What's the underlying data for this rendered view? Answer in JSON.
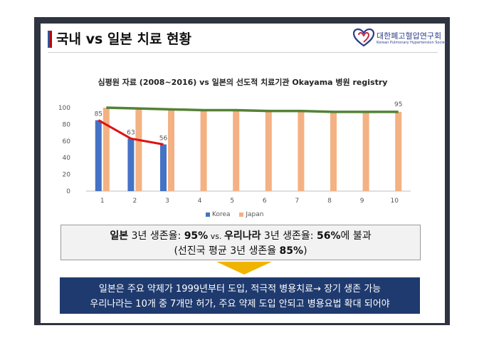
{
  "header": {
    "title": "국내 vs 일본 치료 현황",
    "logo_name_ko": "대한폐고혈압연구회",
    "logo_name_en": "Korean Pulmonary Hypertension Society"
  },
  "chart_data": {
    "type": "bar",
    "title": "심평원 자료 (2008~2016) vs 일본의 선도적 치료기관 Okayama 병원 registry",
    "categories": [
      "1",
      "2",
      "3",
      "4",
      "5",
      "6",
      "7",
      "8",
      "9",
      "10"
    ],
    "ylim": [
      0,
      100
    ],
    "yticks": [
      "0",
      "20",
      "40",
      "60",
      "80",
      "100"
    ],
    "series": [
      {
        "name": "Korea",
        "color": "#4472c4",
        "values": [
          85,
          63,
          56,
          null,
          null,
          null,
          null,
          null,
          null,
          null
        ],
        "labels": [
          "85",
          "63",
          "56"
        ]
      },
      {
        "name": "Japan",
        "color": "#f4b183",
        "values": [
          100,
          99,
          98,
          97,
          97,
          96,
          96,
          95,
          95,
          95
        ],
        "labels_shown": {
          "9": "95"
        }
      }
    ],
    "korea_trend_color": "#e01010",
    "japan_trend_color": "#548235",
    "grid": false,
    "legend_position": "bottom"
  },
  "callout": {
    "line1_a": "일본",
    "line1_b": " 3년 생존율: ",
    "line1_c": "95%",
    "line1_d": " vs. ",
    "line1_e": "우리나라",
    "line1_f": " 3년 생존율: ",
    "line1_g": "56%",
    "line1_h": "에 불과",
    "line2_a": "(선진국 평균 3년 생존율 ",
    "line2_b": "85%",
    "line2_c": ")"
  },
  "summary": {
    "line1": "일본은 주요 약제가 1999년부터 도입,  적극적 병용치료→ 장기 생존 가능",
    "line2": "우리나라는 10개 중 7개만 허가, 주요 약제 도입 안되고 병용요법 확대 되어야"
  }
}
